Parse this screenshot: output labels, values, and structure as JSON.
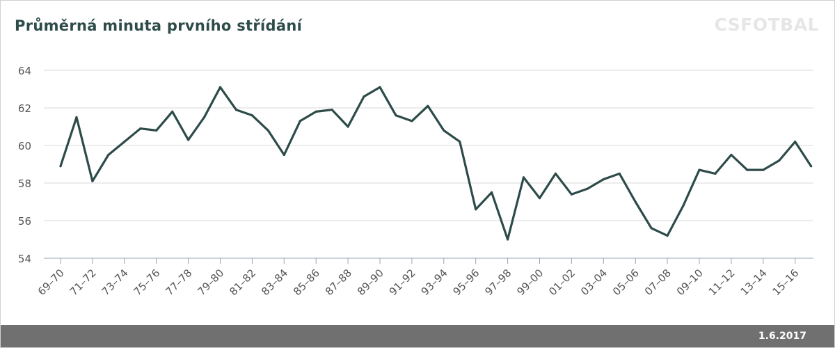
{
  "header": {
    "title": "Průměrná minuta prvního střídání",
    "logo": "CSFOTBAL"
  },
  "footer": {
    "date": "1.6.2017"
  },
  "colors": {
    "line": "#2d4b49",
    "grid": "#d9d9d9",
    "axis_text": "#555555",
    "footer_bg": "#707070"
  },
  "chart_data": {
    "type": "line",
    "title": "Průměrná minuta prvního střídání",
    "xlabel": "",
    "ylabel": "",
    "ylim": [
      54,
      64
    ],
    "yticks": [
      54,
      56,
      58,
      60,
      62,
      64
    ],
    "grid": true,
    "legend": "none",
    "x": [
      "69–70",
      "70–71",
      "71–72",
      "72–73",
      "73–74",
      "74–75",
      "75–76",
      "76–77",
      "77–78",
      "78–79",
      "79–80",
      "80–81",
      "81–82",
      "82–83",
      "83–84",
      "84–85",
      "85–86",
      "86–87",
      "87–88",
      "88–89",
      "89–90",
      "90–91",
      "91–92",
      "92–93",
      "93–94",
      "94–95",
      "95–96",
      "96–97",
      "97–98",
      "98–99",
      "99–00",
      "00–01",
      "01–02",
      "02–03",
      "03–04",
      "04–05",
      "05–06",
      "06–07",
      "07–08",
      "08–09",
      "09–10",
      "10–11",
      "11–12",
      "12–13",
      "13–14",
      "14–15",
      "15–16",
      "16–17"
    ],
    "xtick_labels": [
      "69–70",
      "71–72",
      "73–74",
      "75–76",
      "77–78",
      "79–80",
      "81–82",
      "83–84",
      "85–86",
      "87–88",
      "89–90",
      "91–92",
      "93–94",
      "95–96",
      "97–98",
      "99–00",
      "01–02",
      "03–04",
      "05–06",
      "07–08",
      "09–10",
      "11–12",
      "13–14",
      "15–16"
    ],
    "series": [
      {
        "values": [
          58.9,
          61.5,
          58.1,
          59.5,
          60.2,
          60.9,
          60.8,
          61.8,
          60.3,
          61.5,
          63.1,
          61.9,
          61.6,
          60.8,
          59.5,
          61.3,
          61.8,
          61.9,
          61.0,
          62.6,
          63.1,
          61.6,
          61.3,
          62.1,
          60.8,
          60.2,
          56.6,
          57.5,
          55.0,
          58.3,
          57.2,
          58.5,
          57.4,
          57.7,
          58.2,
          58.5,
          57.0,
          55.6,
          55.2,
          56.8,
          58.7,
          58.5,
          59.5,
          58.7,
          58.7,
          59.2,
          60.2,
          58.9
        ]
      }
    ]
  }
}
